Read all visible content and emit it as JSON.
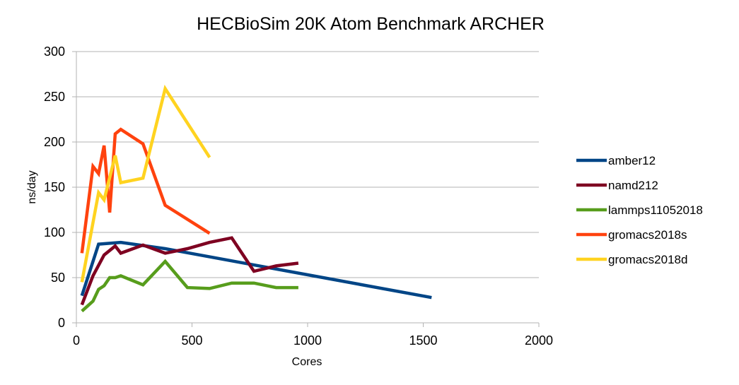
{
  "chart_data": {
    "type": "line",
    "title": "HECBioSim 20K Atom Benchmark ARCHER",
    "xlabel": "Cores",
    "ylabel": "ns/day",
    "xlim": [
      0,
      2000
    ],
    "ylim": [
      0,
      300
    ],
    "xticks": [
      0,
      500,
      1000,
      1500,
      2000
    ],
    "yticks": [
      0,
      50,
      100,
      150,
      200,
      250,
      300
    ],
    "grid": "horizontal",
    "legend_position": "right",
    "series": [
      {
        "name": "amber12",
        "color": "#004586",
        "points": [
          [
            24,
            30
          ],
          [
            96,
            87
          ],
          [
            192,
            89
          ],
          [
            384,
            82
          ],
          [
            1536,
            28
          ]
        ]
      },
      {
        "name": "namd212",
        "color": "#7e0021",
        "points": [
          [
            24,
            20
          ],
          [
            72,
            52
          ],
          [
            120,
            75
          ],
          [
            168,
            85
          ],
          [
            192,
            77
          ],
          [
            288,
            86
          ],
          [
            384,
            77
          ],
          [
            480,
            82
          ],
          [
            576,
            89
          ],
          [
            672,
            94
          ],
          [
            768,
            57
          ],
          [
            864,
            63
          ],
          [
            960,
            66
          ]
        ]
      },
      {
        "name": "lammps11052018",
        "color": "#579d1c",
        "points": [
          [
            24,
            13
          ],
          [
            72,
            24
          ],
          [
            96,
            37
          ],
          [
            120,
            41
          ],
          [
            144,
            50
          ],
          [
            168,
            50
          ],
          [
            192,
            52
          ],
          [
            288,
            42
          ],
          [
            384,
            68
          ],
          [
            480,
            39
          ],
          [
            576,
            38
          ],
          [
            672,
            44
          ],
          [
            768,
            44
          ],
          [
            864,
            39
          ],
          [
            960,
            39
          ]
        ]
      },
      {
        "name": "gromacs2018s",
        "color": "#ff420e",
        "points": [
          [
            24,
            77
          ],
          [
            72,
            173
          ],
          [
            96,
            165
          ],
          [
            120,
            196
          ],
          [
            144,
            122
          ],
          [
            168,
            209
          ],
          [
            192,
            214
          ],
          [
            288,
            198
          ],
          [
            384,
            130
          ],
          [
            576,
            99
          ]
        ]
      },
      {
        "name": "gromacs2018d",
        "color": "#ffd320",
        "points": [
          [
            24,
            45
          ],
          [
            96,
            144
          ],
          [
            120,
            136
          ],
          [
            168,
            185
          ],
          [
            192,
            155
          ],
          [
            288,
            160
          ],
          [
            384,
            259
          ],
          [
            576,
            183
          ]
        ]
      }
    ]
  }
}
